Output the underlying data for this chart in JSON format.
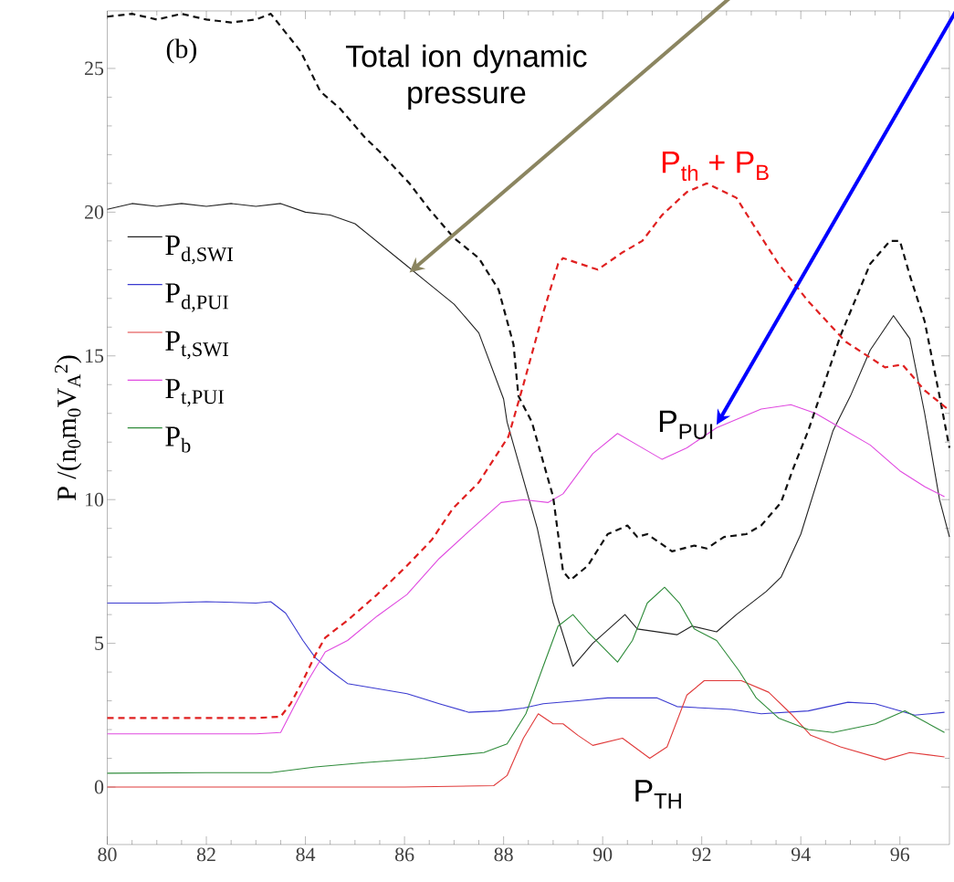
{
  "chart_data": {
    "type": "line",
    "ylabel": "P /(n$_{0}$m$_{0}$V$_{A}$$^{2}$)",
    "xlim": [
      80,
      97
    ],
    "ylim": [
      -2,
      27
    ],
    "xticks": [
      80,
      82,
      84,
      86,
      88,
      90,
      92,
      94,
      96
    ],
    "yticks": [
      0,
      5,
      10,
      15,
      20,
      25
    ],
    "legend": "left",
    "annotations": [
      "(b)",
      "Total ion dynamic pressure",
      "P$_{th}$ + P$_{B}$",
      {
        "text": "P$_{PUI}$",
        "x": 92.3,
        "y": 12.6
      },
      "P$_{TH}$"
    ],
    "series": [
      {
        "name": "P$_{d,SWI}$",
        "color": "#222222",
        "line_style": "solid",
        "x": [
          80,
          80.5,
          81,
          81.5,
          82,
          82.5,
          83,
          83.5,
          84,
          84.5,
          85,
          85.5,
          86,
          86.5,
          87,
          87.5,
          88,
          88.07,
          88.68,
          89.0,
          89.4,
          89.8,
          90.45,
          90.7,
          91.5,
          91.8,
          92.3,
          92.7,
          93.3,
          93.6,
          94.0,
          94.65,
          95.0,
          95.4,
          95.87,
          96.2,
          96.5,
          96.8,
          97
        ],
        "values": [
          20.1,
          20.3,
          20.2,
          20.3,
          20.2,
          20.3,
          20.2,
          20.3,
          20.0,
          19.9,
          19.6,
          18.9,
          18.2,
          17.5,
          16.8,
          15.8,
          13.5,
          12.7,
          9.0,
          6.4,
          4.2,
          5.0,
          6.0,
          5.5,
          5.3,
          5.6,
          5.4,
          6.0,
          6.8,
          7.3,
          8.8,
          12.4,
          13.6,
          15.2,
          16.4,
          15.6,
          13.0,
          10.0,
          8.7
        ]
      },
      {
        "name": "P$_{d,PUI}$",
        "color": "#3a3ad0",
        "line_style": "solid",
        "x": [
          80,
          81,
          82,
          83,
          83.3,
          83.6,
          83.95,
          84.2,
          84.5,
          84.85,
          86.05,
          86.7,
          87.3,
          87.9,
          88.4,
          88.8,
          89.5,
          90.1,
          91.1,
          91.5,
          92.6,
          93.2,
          94.15,
          94.95,
          95.5,
          96.3,
          96.9
        ],
        "values": [
          6.4,
          6.4,
          6.45,
          6.4,
          6.45,
          6.05,
          5.1,
          4.5,
          4.05,
          3.6,
          3.25,
          2.9,
          2.6,
          2.65,
          2.75,
          2.9,
          3.0,
          3.1,
          3.1,
          2.8,
          2.7,
          2.55,
          2.65,
          2.95,
          2.9,
          2.5,
          2.6
        ]
      },
      {
        "name": "P$_{t,SWI}$",
        "color": "#e03a3a",
        "line_style": "solid",
        "x": [
          80,
          82,
          84,
          86,
          87.8,
          88.07,
          88.4,
          88.7,
          89.0,
          89.2,
          89.5,
          89.8,
          90.4,
          90.95,
          91.3,
          91.7,
          92.05,
          92.8,
          93.35,
          93.8,
          94.2,
          94.8,
          95.7,
          96.2,
          96.9
        ],
        "values": [
          0.0,
          0.0,
          0.0,
          0.0,
          0.05,
          0.4,
          1.7,
          2.55,
          2.2,
          2.2,
          1.8,
          1.45,
          1.7,
          1.0,
          1.4,
          3.2,
          3.7,
          3.7,
          3.3,
          2.55,
          1.8,
          1.4,
          0.95,
          1.2,
          1.05
        ]
      },
      {
        "name": "P$_{t,PUI}$",
        "color": "#e04ae0",
        "line_style": "solid",
        "x": [
          80,
          81,
          82,
          83,
          83.5,
          83.8,
          84.05,
          84.4,
          84.85,
          85.45,
          86.05,
          86.7,
          87.3,
          87.95,
          88.4,
          88.9,
          89.2,
          89.8,
          90.3,
          90.7,
          91.2,
          91.7,
          92.3,
          93.2,
          93.8,
          94.3,
          94.8,
          95.4,
          96.0,
          96.5,
          96.9
        ],
        "values": [
          1.85,
          1.85,
          1.85,
          1.85,
          1.9,
          2.9,
          3.7,
          4.7,
          5.1,
          5.95,
          6.7,
          7.95,
          8.9,
          9.9,
          10.0,
          9.9,
          10.2,
          11.6,
          12.3,
          11.9,
          11.4,
          11.8,
          12.5,
          13.15,
          13.3,
          13.0,
          12.5,
          11.9,
          11.0,
          10.45,
          10.1
        ]
      },
      {
        "name": "P$_{b}$",
        "color": "#2e8b3a",
        "line_style": "solid",
        "x": [
          80,
          82,
          83.3,
          84.2,
          85.2,
          86.4,
          87.6,
          88.07,
          88.45,
          88.8,
          89.1,
          89.4,
          89.7,
          90.3,
          90.6,
          90.9,
          91.25,
          91.55,
          91.85,
          92.3,
          92.75,
          93.1,
          93.55,
          94.15,
          94.65,
          95.5,
          96.1,
          96.9
        ],
        "values": [
          0.48,
          0.5,
          0.5,
          0.7,
          0.85,
          1.0,
          1.2,
          1.5,
          2.55,
          4.2,
          5.6,
          6.0,
          5.4,
          4.35,
          5.1,
          6.4,
          6.95,
          6.4,
          5.5,
          5.1,
          4.05,
          3.1,
          2.4,
          2.0,
          1.9,
          2.2,
          2.65,
          1.9
        ]
      },
      {
        "color": "#111111",
        "line_style": "dashed",
        "x": [
          80,
          80.5,
          81,
          81.5,
          82,
          82.5,
          83,
          83.3,
          83.9,
          84.3,
          84.7,
          85.2,
          85.5,
          86.1,
          86.5,
          87.0,
          87.5,
          87.9,
          88.2,
          88.3,
          88.57,
          89.0,
          89.2,
          89.35,
          89.7,
          90.1,
          90.5,
          90.7,
          90.9,
          91.4,
          91.85,
          92.1,
          92.45,
          92.9,
          93.2,
          93.6,
          93.85,
          94.15,
          94.8,
          95.4,
          95.8,
          96.0,
          96.2,
          96.5,
          96.8,
          97
        ],
        "values": [
          26.8,
          26.9,
          26.7,
          26.9,
          26.7,
          26.6,
          26.7,
          26.9,
          25.6,
          24.2,
          23.6,
          22.6,
          22.1,
          21.0,
          20.1,
          19.1,
          18.4,
          17.3,
          15.4,
          13.6,
          12.7,
          10.1,
          7.5,
          7.2,
          7.7,
          8.8,
          9.1,
          8.7,
          8.8,
          8.2,
          8.4,
          8.3,
          8.7,
          8.8,
          9.1,
          9.9,
          11.1,
          12.4,
          15.7,
          18.2,
          19.0,
          19.0,
          17.8,
          16.2,
          13.6,
          11.8
        ]
      },
      {
        "color": "#e02020",
        "line_style": "dashed",
        "x": [
          80,
          81,
          82,
          83,
          83.5,
          83.7,
          83.95,
          84.2,
          84.4,
          84.85,
          85.45,
          86.05,
          86.55,
          86.98,
          87.5,
          87.8,
          88.1,
          88.4,
          88.8,
          89.1,
          89.2,
          89.9,
          90.4,
          90.8,
          91.2,
          91.7,
          92.1,
          92.7,
          93.1,
          93.55,
          94.15,
          94.9,
          95.7,
          96.05,
          96.5,
          97
        ],
        "values": [
          2.4,
          2.4,
          2.4,
          2.4,
          2.45,
          2.9,
          3.7,
          4.6,
          5.2,
          5.8,
          6.7,
          7.7,
          8.6,
          9.7,
          10.6,
          11.4,
          12.2,
          14.0,
          16.5,
          18.2,
          18.4,
          18.0,
          18.6,
          19.0,
          19.9,
          20.7,
          21.0,
          20.5,
          19.4,
          18.2,
          16.9,
          15.5,
          14.6,
          14.7,
          13.8,
          13.1
        ]
      }
    ]
  }
}
